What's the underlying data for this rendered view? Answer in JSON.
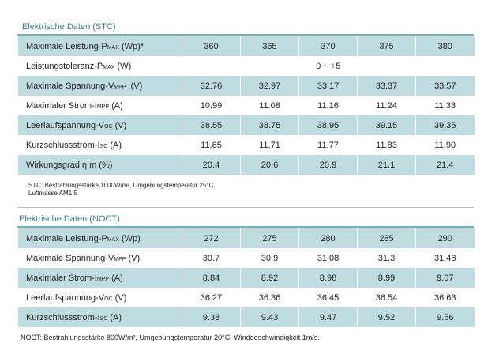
{
  "stc": {
    "title": "Elektrische Daten (STC)",
    "rows": [
      {
        "label": "Maximale Leistung-P",
        "sub": "MAX",
        "unit": " (Wp)*",
        "values": [
          "360",
          "365",
          "370",
          "375",
          "380"
        ]
      },
      {
        "label": "Leistungstoleranz-P",
        "sub": "MAX",
        "unit": " (W)",
        "span": "0 ~ +5"
      },
      {
        "label": "Maximale Spannung-V",
        "sub": "MPP",
        "unit": "  (V)",
        "values": [
          "32.76",
          "32.97",
          "33.17",
          "33.37",
          "33.57"
        ]
      },
      {
        "label": "Maximaler Strom-I",
        "sub": "MPP",
        "unit": " (A)",
        "values": [
          "10.99",
          "11.08",
          "11.16",
          "11.24",
          "11.33"
        ]
      },
      {
        "label": "Leerlaufspannung-V",
        "sub": "OC",
        "unit": " (V)",
        "values": [
          "38.55",
          "38.75",
          "38.95",
          "39.15",
          "39.35"
        ]
      },
      {
        "label": "Kurzschlussstrom-I",
        "sub": "SC",
        "unit": " (A)",
        "values": [
          "11.65",
          "11.71",
          "11.77",
          "11.83",
          "11.90"
        ]
      },
      {
        "label": "Wirkungsgrad η m (%)",
        "sub": "",
        "unit": "",
        "values": [
          "20.4",
          "20.6",
          "20.9",
          "21.1",
          "21.4"
        ]
      }
    ],
    "note_line1": "STC: Bestrahlungsstärke 1000W/m², Umgebungstemperatur 25°C,",
    "note_line2": "Luftmasse AM1.5"
  },
  "noct": {
    "title": "Elektrische Daten (NOCT)",
    "rows": [
      {
        "label": "Maximale Leistung-P",
        "sub": "MAX",
        "unit": " (Wp)",
        "values": [
          "272",
          "275",
          "280",
          "285",
          "290"
        ]
      },
      {
        "label": "Maximale Spannung-V",
        "sub": "MPP",
        "unit": " (V)",
        "values": [
          "30.7",
          "30.9",
          "31.08",
          "31.3",
          "31.48"
        ]
      },
      {
        "label": "Maximaler Strom-I",
        "sub": "MPP",
        "unit": " (A)",
        "values": [
          "8.84",
          "8.92",
          "8.98",
          "8.99",
          "9.07"
        ]
      },
      {
        "label": "Leerlaufspannung-V",
        "sub": "OC",
        "unit": " (V)",
        "values": [
          "36.27",
          "36.36",
          "36.45",
          "36.54",
          "36.63"
        ]
      },
      {
        "label": "Kurzschlussstrom-I",
        "sub": "SC",
        "unit": " (A)",
        "values": [
          "9.38",
          "9.43",
          "9.47",
          "9.52",
          "9.56"
        ]
      }
    ],
    "note": "NOCT: Bestrahlungsstärke 800W/m², Umgebungstemperatur 20°C, Windgeschwindigkeit 1m/s."
  }
}
